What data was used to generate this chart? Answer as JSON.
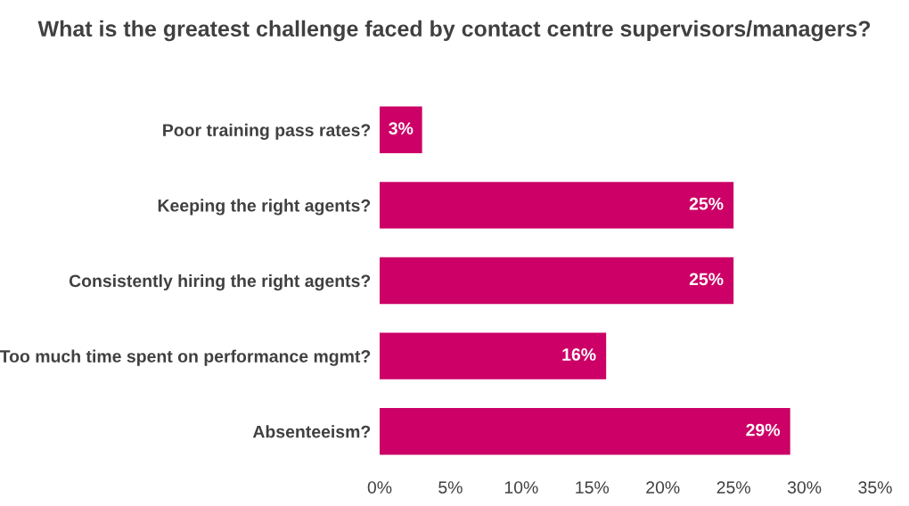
{
  "chart_data": {
    "type": "bar",
    "orientation": "horizontal",
    "title": "What is the greatest challenge faced by contact centre supervisors/managers?",
    "categories": [
      "Poor training pass rates?",
      "Keeping the right agents?",
      "Consistently hiring the right agents?",
      "Too much time spent on performance mgmt?",
      "Absenteeism?"
    ],
    "values": [
      3,
      25,
      25,
      16,
      29
    ],
    "value_labels": [
      "3%",
      "25%",
      "25%",
      "16%",
      "29%"
    ],
    "color": "#cc0066",
    "xlim": [
      0,
      35
    ],
    "xticks": [
      {
        "value": 0,
        "label": "0%"
      },
      {
        "value": 5,
        "label": "5%"
      },
      {
        "value": 10,
        "label": "10%"
      },
      {
        "value": 15,
        "label": "15%"
      },
      {
        "value": 20,
        "label": "20%"
      },
      {
        "value": 25,
        "label": "25%"
      },
      {
        "value": 30,
        "label": "30%"
      },
      {
        "value": 35,
        "label": "35%"
      }
    ],
    "grid": false,
    "legend": false
  }
}
